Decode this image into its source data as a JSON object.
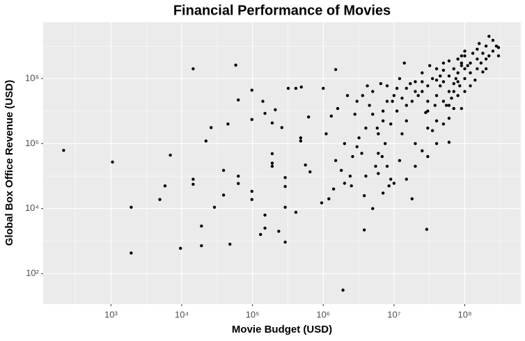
{
  "chart_data": {
    "type": "scatter",
    "title": "Financial Performance of Movies",
    "xlabel": "Movie Budget (USD)",
    "ylabel": "Global Box Office Revenue (USD)",
    "xscale": "log",
    "yscale": "log",
    "grid": true,
    "color": "#000000",
    "xlim": [
      110,
      620000000.0
    ],
    "ylim": [
      11.5,
      5400000000.0
    ],
    "xticks": [
      {
        "value": 1000,
        "label": "10³"
      },
      {
        "value": 10000,
        "label": "10⁴"
      },
      {
        "value": 100000,
        "label": "10⁵"
      },
      {
        "value": 1000000,
        "label": "10⁶"
      },
      {
        "value": 10000000,
        "label": "10⁷"
      },
      {
        "value": 100000000,
        "label": "10⁸"
      }
    ],
    "yticks": [
      {
        "value": 100,
        "label": "10²"
      },
      {
        "value": 10000,
        "label": "10⁴"
      },
      {
        "value": 1000000,
        "label": "10⁶"
      },
      {
        "value": 100000000,
        "label": "10⁸"
      }
    ],
    "x": [
      214,
      1050,
      1930,
      1930,
      4900,
      5800,
      6900,
      9600,
      14500,
      14500,
      14500,
      19000,
      19000,
      22000,
      26000,
      29000,
      39000,
      39000,
      45000,
      48000,
      58000,
      63000,
      63000,
      63000,
      98000,
      98000,
      98000,
      98000,
      130000,
      140000,
      150000,
      150000,
      150000,
      190000,
      190000,
      190000,
      190000,
      235000,
      210000,
      260000,
      290000,
      290000,
      290000,
      290000,
      320000,
      410000,
      490000,
      410000,
      480000,
      480000,
      560000,
      650000,
      620000,
      950000,
      1900000.0,
      3800000.0,
      29000000.0,
      60000000.0,
      1500000.0,
      1200000.0,
      1500000.0,
      2000000.0,
      2500000.0,
      3000000.0,
      3000000.0,
      4000000.0,
      4000000.0,
      5000000.0,
      5000000.0,
      6000000.0,
      6000000.0,
      7000000.0,
      7000000.0,
      8000000.0,
      8000000.0,
      9000000.0,
      1000000.0,
      1300000.0,
      1800000.0,
      2200000.0,
      2800000.0,
      3500000.0,
      4500000.0,
      5500000.0,
      6500000.0,
      7500000.0,
      8500000.0,
      9500000.0,
      1100000.0,
      1600000.0,
      2000000.0,
      2600000.0,
      3200000.0,
      3800000.0,
      4200000.0,
      5000000.0,
      5800000.0,
      6800000.0,
      8000000.0,
      9000000.0,
      1400000.0,
      2400000.0,
      3600000.0,
      6000000.0,
      7000000.0,
      10000000.0,
      12000000.0,
      15000000.0,
      15000000.0,
      18000000.0,
      20000000.0,
      20000000.0,
      25000000.0,
      25000000.0,
      30000000.0,
      30000000.0,
      30000000.0,
      35000000.0,
      40000000.0,
      40000000.0,
      40000000.0,
      50000000.0,
      50000000.0,
      50000000.0,
      60000000.0,
      60000000.0,
      60000000.0,
      70000000.0,
      70000000.0,
      80000000.0,
      80000000.0,
      80000000.0,
      90000000.0,
      100000000.0,
      100000000.0,
      100000000.0,
      120000000.0,
      120000000.0,
      150000000.0,
      150000000.0,
      150000000.0,
      180000000.0,
      200000000.0,
      200000000.0,
      250000000.0,
      250000000.0,
      300000000.0,
      11000000.0,
      13000000.0,
      14000000.0,
      17000000.0,
      22000000.0,
      28000000.0,
      32000000.0,
      38000000.0,
      45000000.0,
      45000000.0,
      55000000.0,
      65000000.0,
      75000000.0,
      85000000.0,
      90000000.0,
      110000000.0,
      130000000.0,
      140000000.0,
      170000000.0,
      220000000.0,
      220000000.0,
      280000000.0,
      160000000.0,
      180000000.0,
      12000000.0,
      20000000.0,
      30000000.0,
      40000000.0,
      25000000.0,
      10000000.0,
      15000000.0,
      18000000.0,
      35000000.0,
      50000000.0,
      60000000.0,
      70000000.0,
      90000000.0,
      100000000.0,
      100000000.0,
      200000000.0,
      300000000.0,
      120000000.0,
      60000000.0,
      40000000.0,
      30000000.0,
      20000000.0,
      15000000.0,
      25000000.0,
      11000000.0,
      13000000.0,
      50000000.0,
      80000000.0,
      70000000.0,
      90000000.0
    ],
    "values": [
      620000,
      270000,
      11000,
      430,
      19000,
      50000,
      440000,
      600,
      200000000.0,
      80000,
      56000,
      2900,
      720,
      1200000.0,
      3100000.0,
      11000,
      150000,
      26000,
      4000000.0,
      800,
      260000000.0,
      22000000.0,
      100000,
      59000,
      44000000.0,
      5500000.0,
      34000,
      19000,
      1600,
      20000000.0,
      8500000.0,
      2500,
      6300,
      4300000.0,
      490000,
      250000,
      200000,
      2000,
      11000000.0,
      3100000.0,
      930,
      11000,
      90000,
      48000,
      50000000.0,
      50000000.0,
      55000000.0,
      7700,
      1500000.0,
      1200000.0,
      220000,
      135000,
      6600000.0,
      15000,
      31,
      2200,
      2300,
      1100000.0,
      190000000.0,
      20000.0,
      300000.0,
      1000000.0,
      50000.0,
      20000000.0,
      800000.0,
      3000000.0,
      100000.0,
      40000000.0,
      10000.0,
      2000000.0,
      500000.0,
      10000000.0,
      30000.0,
      60000000.0,
      200000.0,
      4000000.0,
      50000000.0,
      7000000.0,
      150000.0,
      30000000.0,
      8000000.0,
      500000.0,
      15000000.0,
      200000.0,
      70000000.0,
      1000000.0,
      50000.0,
      20000000.0,
      2000000.0,
      12000000.0,
      60000.0,
      400000.0,
      1500000.0,
      25000.0,
      60000000.0,
      8000000.0,
      3000000.0,
      400000.0,
      20000000.0,
      80000.0,
      40000.0,
      100000.0,
      30000000.0,
      120000.0,
      5000000.0,
      30000000.0,
      100000000.0,
      50000000.0,
      5000000.0,
      20000000.0,
      80000000.0,
      1000000.0,
      40000000.0,
      150000000.0,
      60000000.0,
      10000000.0,
      3000000.0,
      100000000.0,
      30000000.0,
      200000000.0,
      5000000.0,
      80000000.0,
      20000000.0,
      300000000.0,
      120000000.0,
      40000000.0,
      6000000.0,
      200000000.0,
      70000000.0,
      150000000.0,
      30000000.0,
      400000000.0,
      250000000.0,
      100000000.0,
      500000000.0,
      40000000.0,
      300000000.0,
      150000000.0,
      400000000.0,
      800000000.0,
      200000000.0,
      600000000.0,
      1000000000.0,
      400000000.0,
      1500000000.0,
      700000000.0,
      900000000.0,
      10000000.0,
      2000000.0,
      300000000.0,
      70000000.0,
      30000000.0,
      9000000.0,
      250000000.0,
      15000000.0,
      60000000.0,
      120000000.0,
      15000000.0,
      25000000.0,
      100000000.0,
      60000000.0,
      12000000.0,
      250000000.0,
      600000000.0,
      90000000.0,
      300000000.0,
      2000000000.0,
      500000000.0,
      1000000000.0,
      1200000000.0,
      160000000.0,
      300000.0,
      200000.0,
      400000.0,
      1000000.0,
      600000.0,
      60000.0,
      80000.0,
      20000.0,
      2500000.0,
      4000000.0,
      15000000.0,
      40000000.0,
      500000000.0,
      200000000.0,
      700000000.0,
      200000000.0,
      500000000.0,
      60000000.0,
      350000000.0,
      90000000.0,
      20000000.0,
      40000000.0,
      15000000.0,
      80000000.0,
      50000000.0,
      25000000.0,
      180000000.0,
      80000000.0,
      12000000.0,
      300000000.0
    ]
  }
}
